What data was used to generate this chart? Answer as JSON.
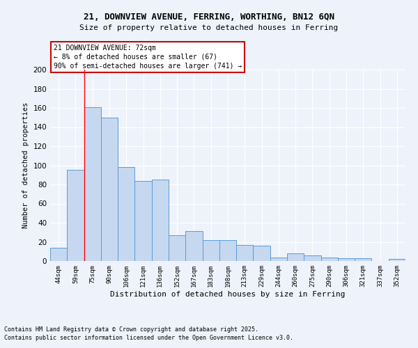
{
  "title1": "21, DOWNVIEW AVENUE, FERRING, WORTHING, BN12 6QN",
  "title2": "Size of property relative to detached houses in Ferring",
  "xlabel": "Distribution of detached houses by size in Ferring",
  "ylabel": "Number of detached properties",
  "categories": [
    "44sqm",
    "59sqm",
    "75sqm",
    "90sqm",
    "106sqm",
    "121sqm",
    "136sqm",
    "152sqm",
    "167sqm",
    "183sqm",
    "198sqm",
    "213sqm",
    "229sqm",
    "244sqm",
    "260sqm",
    "275sqm",
    "290sqm",
    "306sqm",
    "321sqm",
    "337sqm",
    "352sqm"
  ],
  "values": [
    14,
    95,
    161,
    150,
    98,
    84,
    85,
    27,
    31,
    22,
    22,
    17,
    16,
    4,
    8,
    6,
    4,
    3,
    3,
    0,
    2
  ],
  "bar_color": "#c5d8f0",
  "bar_edge_color": "#5b9bd5",
  "red_line_index": 2,
  "annotation_title": "21 DOWNVIEW AVENUE: 72sqm",
  "annotation_line1": "← 8% of detached houses are smaller (67)",
  "annotation_line2": "90% of semi-detached houses are larger (741) →",
  "annotation_box_color": "#ffffff",
  "annotation_box_edge": "#cc0000",
  "footer1": "Contains HM Land Registry data © Crown copyright and database right 2025.",
  "footer2": "Contains public sector information licensed under the Open Government Licence v3.0.",
  "bg_color": "#eef3fb",
  "grid_color": "#ffffff",
  "ylim": [
    0,
    200
  ],
  "yticks": [
    0,
    20,
    40,
    60,
    80,
    100,
    120,
    140,
    160,
    180,
    200
  ]
}
